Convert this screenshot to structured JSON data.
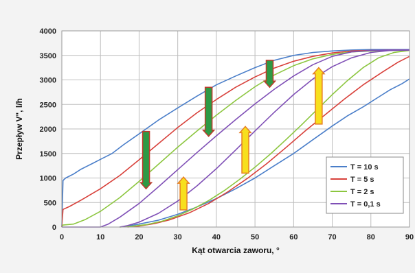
{
  "chart_data": {
    "type": "line",
    "title": "",
    "xlabel": "Kąt otwarcia zaworu, °",
    "ylabel": "Przepływ V\", l/h",
    "xlim": [
      0,
      90
    ],
    "ylim": [
      0,
      4000
    ],
    "x_ticks": [
      "0",
      "10",
      "20",
      "30",
      "40",
      "50",
      "60",
      "70",
      "80",
      "90"
    ],
    "y_ticks": [
      "0",
      "500",
      "1000",
      "1500",
      "2000",
      "2500",
      "3000",
      "3500",
      "4000"
    ],
    "grid": true,
    "legend_position": "bottom-right",
    "series": [
      {
        "name": "T = 10 s",
        "color": "#4a7ec9",
        "opening": {
          "x": [
            0,
            0.3,
            1,
            3,
            5,
            8,
            10,
            13,
            16,
            20,
            25,
            30,
            35,
            40,
            45,
            50,
            55,
            60,
            65,
            70,
            75,
            80,
            90
          ],
          "y": [
            0,
            950,
            1000,
            1080,
            1180,
            1300,
            1380,
            1500,
            1680,
            1900,
            2180,
            2430,
            2670,
            2900,
            3080,
            3250,
            3400,
            3500,
            3560,
            3590,
            3610,
            3620,
            3620
          ]
        },
        "closing": {
          "x": [
            90,
            88,
            85,
            82,
            78,
            74,
            70,
            65,
            60,
            55,
            50,
            45,
            40,
            35,
            30,
            25,
            20,
            17,
            15
          ],
          "y": [
            3020,
            2920,
            2800,
            2650,
            2450,
            2270,
            2060,
            1780,
            1500,
            1250,
            1000,
            780,
            580,
            410,
            260,
            140,
            60,
            20,
            0
          ]
        }
      },
      {
        "name": "T = 5 s",
        "color": "#d8403a",
        "opening": {
          "x": [
            0,
            0.3,
            2,
            5,
            10,
            15,
            20,
            25,
            30,
            35,
            40,
            45,
            50,
            55,
            60,
            65,
            70,
            75,
            80,
            85,
            90
          ],
          "y": [
            0,
            360,
            420,
            550,
            780,
            1050,
            1370,
            1700,
            2030,
            2330,
            2600,
            2850,
            3060,
            3240,
            3380,
            3480,
            3550,
            3590,
            3600,
            3610,
            3610
          ]
        },
        "closing": {
          "x": [
            90,
            87,
            83,
            78,
            73,
            68,
            63,
            58,
            53,
            48,
            43,
            38,
            33,
            28,
            24,
            20,
            17
          ],
          "y": [
            3480,
            3360,
            3160,
            2900,
            2600,
            2280,
            1960,
            1620,
            1290,
            990,
            720,
            480,
            290,
            150,
            70,
            20,
            0
          ]
        }
      },
      {
        "name": "T = 2 s",
        "color": "#8cc63f",
        "opening": {
          "x": [
            0,
            0.3,
            3,
            6,
            10,
            15,
            20,
            25,
            30,
            35,
            40,
            45,
            50,
            55,
            60,
            65,
            70,
            75,
            80,
            85,
            90
          ],
          "y": [
            0,
            40,
            60,
            150,
            320,
            600,
            930,
            1280,
            1630,
            1960,
            2280,
            2580,
            2860,
            3100,
            3290,
            3430,
            3520,
            3570,
            3590,
            3600,
            3600
          ]
        },
        "closing": {
          "x": [
            90,
            86,
            82,
            78,
            74,
            70,
            66,
            62,
            58,
            54,
            50,
            46,
            42,
            38,
            34,
            30,
            26,
            22,
            18,
            15
          ],
          "y": [
            3600,
            3560,
            3450,
            3250,
            2990,
            2700,
            2390,
            2080,
            1780,
            1490,
            1220,
            970,
            740,
            540,
            370,
            230,
            120,
            50,
            15,
            0
          ]
        }
      },
      {
        "name": "T = 0,1 s",
        "color": "#7f4fb6",
        "opening": {
          "x": [
            0,
            10,
            12,
            15,
            20,
            25,
            30,
            35,
            40,
            45,
            50,
            55,
            60,
            65,
            70,
            75,
            80,
            85,
            90
          ],
          "y": [
            0,
            0,
            60,
            200,
            480,
            820,
            1170,
            1520,
            1860,
            2190,
            2510,
            2810,
            3080,
            3310,
            3480,
            3570,
            3600,
            3610,
            3610
          ]
        },
        "closing": {
          "x": [
            90,
            85,
            80,
            75,
            70,
            65,
            60,
            55,
            50,
            45,
            40,
            35,
            30,
            25,
            20,
            17,
            15
          ],
          "y": [
            3610,
            3600,
            3560,
            3450,
            3270,
            3020,
            2700,
            2340,
            1960,
            1570,
            1190,
            840,
            530,
            280,
            100,
            30,
            0
          ]
        }
      }
    ],
    "annotations": {
      "arrow_color_down": "#2e9a45",
      "arrow_color_up": "#f7df1e",
      "arrow_outline_down": "#c0392b",
      "arrow_outline_up": "#e67e22",
      "arrows": [
        {
          "direction": "down",
          "x": 21.8,
          "y_from": 1950,
          "y_to": 780
        },
        {
          "direction": "down",
          "x": 38.0,
          "y_from": 2850,
          "y_to": 1850
        },
        {
          "direction": "down",
          "x": 53.8,
          "y_from": 3400,
          "y_to": 2850
        },
        {
          "direction": "up",
          "x": 31.5,
          "y_from": 350,
          "y_to": 1020
        },
        {
          "direction": "up",
          "x": 47.5,
          "y_from": 1100,
          "y_to": 2050
        },
        {
          "direction": "up",
          "x": 66.5,
          "y_from": 2100,
          "y_to": 3250
        }
      ]
    }
  }
}
